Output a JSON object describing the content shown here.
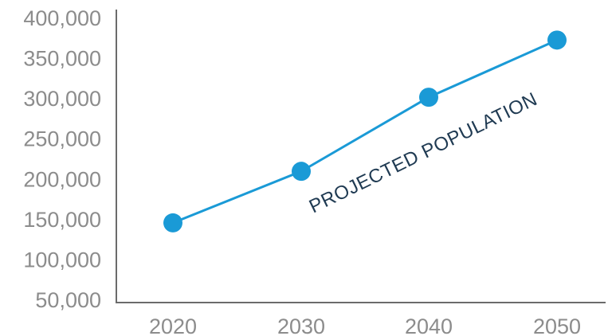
{
  "chart_data": {
    "type": "line",
    "title": "",
    "xlabel": "",
    "ylabel": "",
    "x": [
      "2020",
      "2030",
      "2040",
      "2050"
    ],
    "series": [
      {
        "values": [
          145000,
          209000,
          301000,
          372000
        ],
        "color": "#1a9ad6"
      }
    ],
    "ylim": [
      50000,
      400000
    ],
    "yticks": [
      "50,000",
      "100,000",
      "150,000",
      "200,000",
      "250,000",
      "300,000",
      "350,000",
      "400,000"
    ],
    "ytick_values": [
      50000,
      100000,
      150000,
      200000,
      250000,
      300000,
      350000,
      400000
    ],
    "grid": false,
    "legend": "none",
    "annotation": {
      "text": "PROJECTED POPULATION"
    },
    "colors": {
      "line": "#1a9ad6",
      "axis": "#6b6b6b",
      "tick": "#8c8c8c",
      "annotation": "#1f3a52"
    }
  }
}
